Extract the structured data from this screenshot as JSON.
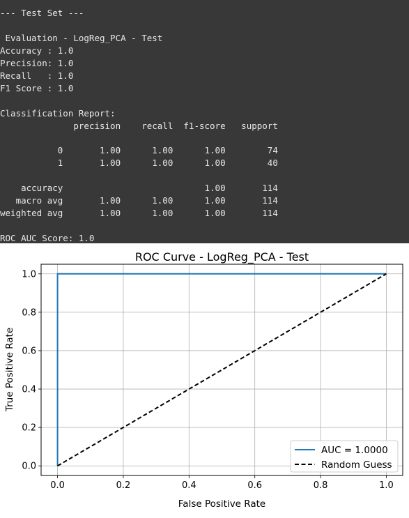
{
  "console": {
    "lines": [
      "--- Test Set ---",
      "",
      " Evaluation - LogReg_PCA - Test",
      "Accuracy : 1.0",
      "Precision: 1.0",
      "Recall   : 1.0",
      "F1 Score : 1.0",
      "",
      "Classification Report:",
      "              precision    recall  f1-score   support",
      "",
      "           0       1.00      1.00      1.00        74",
      "           1       1.00      1.00      1.00        40",
      "",
      "    accuracy                           1.00       114",
      "   macro avg       1.00      1.00      1.00       114",
      "weighted avg       1.00      1.00      1.00       114",
      "",
      "ROC AUC Score: 1.0"
    ]
  },
  "chart_data": {
    "type": "line",
    "title": "ROC Curve - LogReg_PCA - Test",
    "xlabel": "False Positive Rate",
    "ylabel": "True Positive Rate",
    "xlim": [
      -0.05,
      1.05
    ],
    "ylim": [
      -0.05,
      1.05
    ],
    "x_ticks": [
      "0.0",
      "0.2",
      "0.4",
      "0.6",
      "0.8",
      "1.0"
    ],
    "y_ticks": [
      "0.0",
      "0.2",
      "0.4",
      "0.6",
      "0.8",
      "1.0"
    ],
    "grid": true,
    "legend_position": "lower-right",
    "series": [
      {
        "name": "AUC = 1.0000",
        "color": "#1f77b4",
        "dash": "solid",
        "x": [
          0,
          0,
          1
        ],
        "y": [
          0,
          1,
          1
        ]
      },
      {
        "name": "Random Guess",
        "color": "#000000",
        "dash": "dashed",
        "x": [
          0,
          1
        ],
        "y": [
          0,
          1
        ]
      }
    ]
  }
}
